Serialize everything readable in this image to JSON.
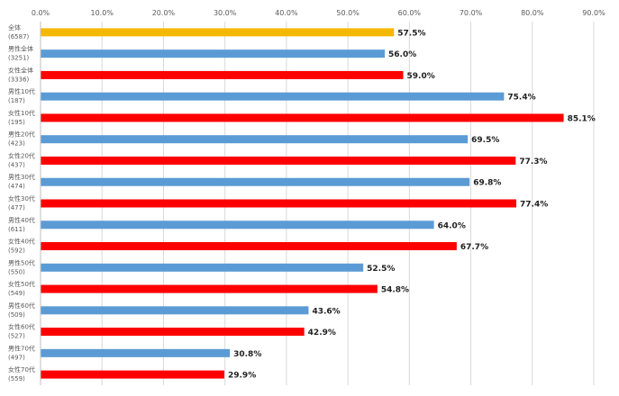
{
  "chart_data": {
    "type": "bar",
    "orientation": "horizontal",
    "title": "",
    "xlabel": "",
    "ylabel": "",
    "xlim": [
      0,
      90
    ],
    "ticks": [
      "0.0%",
      "10.0%",
      "20.0%",
      "30.0%",
      "40.0%",
      "50.0%",
      "60.0%",
      "70.0%",
      "80.0%",
      "90.0%"
    ],
    "grid": true,
    "legend": "none",
    "colors": {
      "total": "#f5b800",
      "male": "#5b9bd5",
      "female": "#ff0000"
    },
    "categories": [
      {
        "label": "全体",
        "n": "(6587)",
        "value": 57.5,
        "value_label": "57.5%",
        "group": "total"
      },
      {
        "label": "男性全体",
        "n": "(3251)",
        "value": 56.0,
        "value_label": "56.0%",
        "group": "male"
      },
      {
        "label": "女性全体",
        "n": "(3336)",
        "value": 59.0,
        "value_label": "59.0%",
        "group": "female"
      },
      {
        "label": "男性10代",
        "n": "(187)",
        "value": 75.4,
        "value_label": "75.4%",
        "group": "male"
      },
      {
        "label": "女性10代",
        "n": "(195)",
        "value": 85.1,
        "value_label": "85.1%",
        "group": "female"
      },
      {
        "label": "男性20代",
        "n": "(423)",
        "value": 69.5,
        "value_label": "69.5%",
        "group": "male"
      },
      {
        "label": "女性20代",
        "n": "(437)",
        "value": 77.3,
        "value_label": "77.3%",
        "group": "female"
      },
      {
        "label": "男性30代",
        "n": "(474)",
        "value": 69.8,
        "value_label": "69.8%",
        "group": "male"
      },
      {
        "label": "女性30代",
        "n": "(477)",
        "value": 77.4,
        "value_label": "77.4%",
        "group": "female"
      },
      {
        "label": "男性40代",
        "n": "(611)",
        "value": 64.0,
        "value_label": "64.0%",
        "group": "male"
      },
      {
        "label": "女性40代",
        "n": "(592)",
        "value": 67.7,
        "value_label": "67.7%",
        "group": "female"
      },
      {
        "label": "男性50代",
        "n": "(550)",
        "value": 52.5,
        "value_label": "52.5%",
        "group": "male"
      },
      {
        "label": "女性50代",
        "n": "(549)",
        "value": 54.8,
        "value_label": "54.8%",
        "group": "female"
      },
      {
        "label": "男性60代",
        "n": "(509)",
        "value": 43.6,
        "value_label": "43.6%",
        "group": "male"
      },
      {
        "label": "女性60代",
        "n": "(527)",
        "value": 42.9,
        "value_label": "42.9%",
        "group": "female"
      },
      {
        "label": "男性70代",
        "n": "(497)",
        "value": 30.8,
        "value_label": "30.8%",
        "group": "male"
      },
      {
        "label": "女性70代",
        "n": "(559)",
        "value": 29.9,
        "value_label": "29.9%",
        "group": "female"
      }
    ]
  }
}
